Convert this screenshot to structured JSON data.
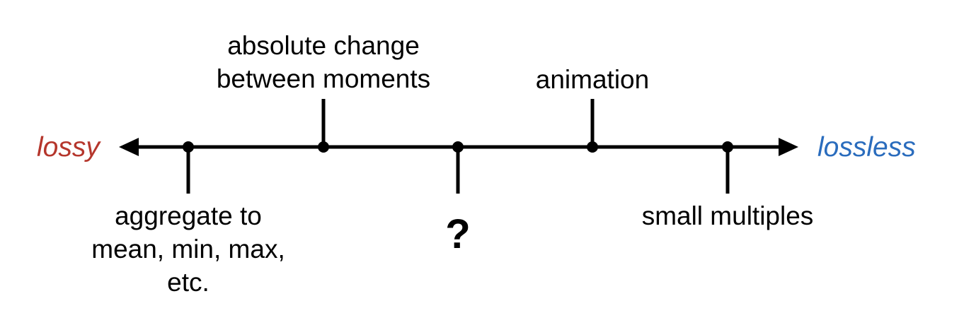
{
  "axis": {
    "left_label": "lossy",
    "right_label": "lossless",
    "left_color": "#b5362c",
    "right_color": "#2a6cbd",
    "line_color": "#000000"
  },
  "points": [
    {
      "id": "aggregate",
      "lines": [
        "aggregate to",
        "mean, min, max,",
        "etc."
      ],
      "side": "below"
    },
    {
      "id": "absolute-change",
      "lines": [
        "absolute change",
        "between moments"
      ],
      "side": "above"
    },
    {
      "id": "unknown",
      "lines": [
        "?"
      ],
      "side": "below"
    },
    {
      "id": "animation",
      "lines": [
        "animation"
      ],
      "side": "above"
    },
    {
      "id": "small-multiples",
      "lines": [
        "small multiples"
      ],
      "side": "below"
    }
  ]
}
